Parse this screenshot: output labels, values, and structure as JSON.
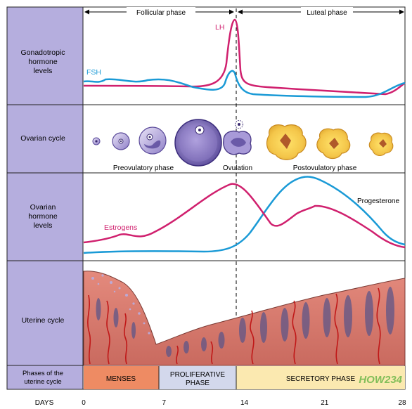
{
  "phases_top": {
    "follicular": "Follicular phase",
    "luteal": "Luteal phase"
  },
  "rows": {
    "gonadotropic": "Gonadotropic\nhormone\nlevels",
    "ovarian_cycle": "Ovarian cycle",
    "ovarian_hormone": "Ovarian\nhormone\nlevels",
    "uterine_cycle": "Uterine cycle",
    "phases_of_uterine": "Phases of the\nuterine cycle",
    "days": "DAYS"
  },
  "hormones": {
    "lh": "LH",
    "fsh": "FSH",
    "estrogens": "Estrogens",
    "progesterone": "Progesterone"
  },
  "ovary_labels": {
    "preovulatory": "Preovulatory phase",
    "ovulation": "Ovulation",
    "postovulatory": "Postovulatory phase"
  },
  "uterine_phases": {
    "menses": "MENSES",
    "proliferative": "PROLIFERATIVE\nPHASE",
    "secretory": "SECRETORY PHASE"
  },
  "day_ticks": [
    "0",
    "7",
    "14",
    "21",
    "28"
  ],
  "watermark": "HOW234",
  "colors": {
    "sidebar": "#b5aede",
    "lh": "#d0206e",
    "fsh": "#1a9ad6",
    "estrogens": "#d0206e",
    "progesterone": "#1a9ad6",
    "menses": "#ee8b63",
    "proliferative": "#d3d8ec",
    "secretory": "#fbe9b0"
  }
}
